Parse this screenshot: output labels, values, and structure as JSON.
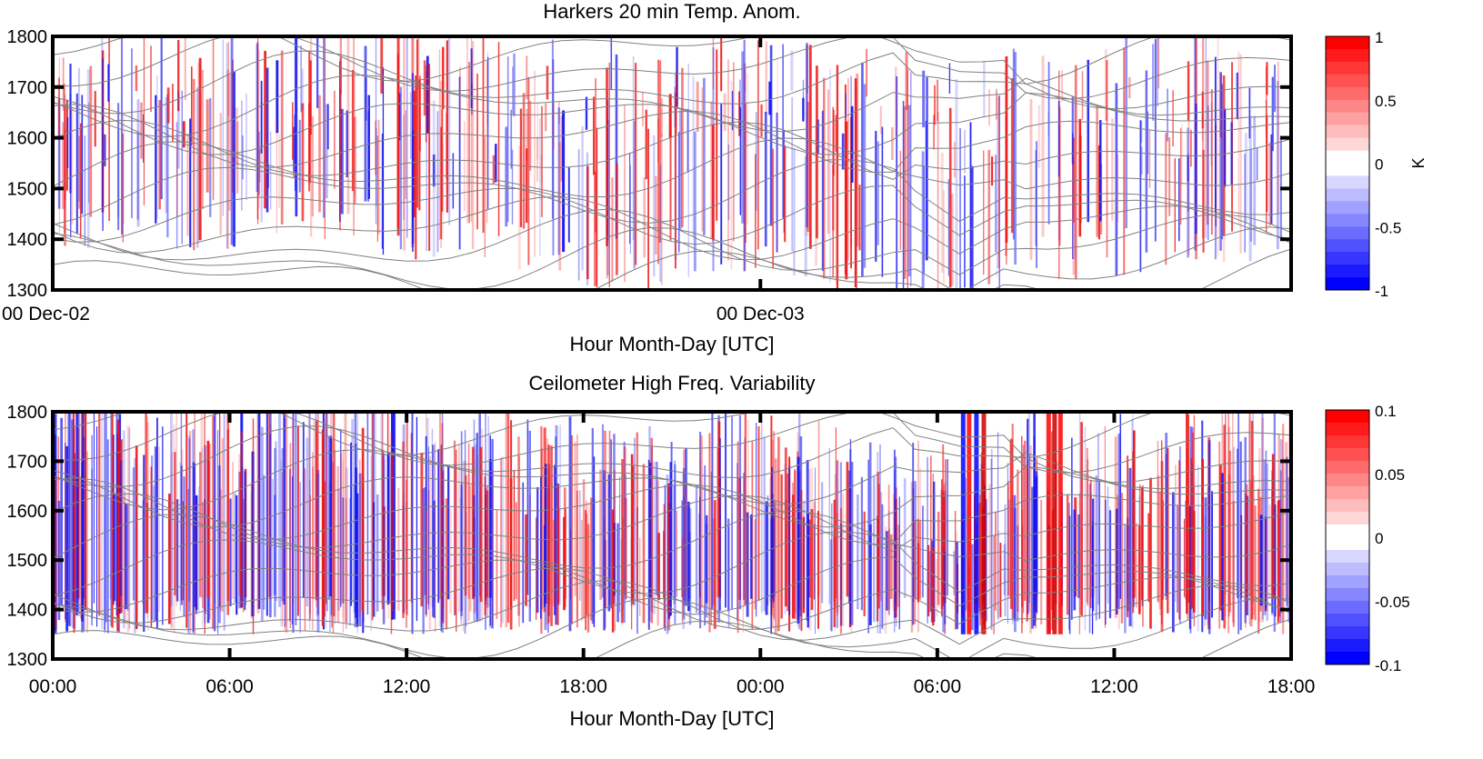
{
  "chart_data": [
    {
      "type": "heatmap",
      "title": "Harkers 20 min Temp. Anom.",
      "xlabel": "Hour Month-Day [UTC]",
      "ylabel": "",
      "x_ticks": [
        "00 Dec-02",
        "00 Dec-03"
      ],
      "x_range_hours": [
        0,
        42
      ],
      "ylim": [
        1300,
        1800
      ],
      "y_ticks": [
        1300,
        1400,
        1500,
        1600,
        1700,
        1800
      ],
      "colorbar": {
        "label": "K",
        "range": [
          -1,
          1
        ],
        "ticks": [
          "1",
          "0.5",
          "0",
          "-0.5",
          "-1"
        ],
        "min_color": "#0000ff",
        "mid_color": "#ffffff",
        "max_color": "#ff0000"
      },
      "overlay": "isotherm contours (gray)"
    },
    {
      "type": "heatmap",
      "title": "Ceilometer High Freq. Variability",
      "xlabel": "Hour Month-Day [UTC]",
      "ylabel": "",
      "x_ticks": [
        "00:00",
        "06:00",
        "12:00",
        "18:00",
        "00:00",
        "06:00",
        "12:00",
        "18:00"
      ],
      "x_range_hours": [
        0,
        42
      ],
      "ylim": [
        1300,
        1800
      ],
      "y_ticks": [
        1300,
        1400,
        1500,
        1600,
        1700,
        1800
      ],
      "colorbar": {
        "label": "",
        "range": [
          -0.1,
          0.1
        ],
        "ticks": [
          "0.1",
          "0.05",
          "0",
          "-0.05",
          "-0.1"
        ],
        "min_color": "#0000ff",
        "mid_color": "#ffffff",
        "max_color": "#ff0000"
      },
      "overlay": "isotherm contours (gray)"
    }
  ]
}
